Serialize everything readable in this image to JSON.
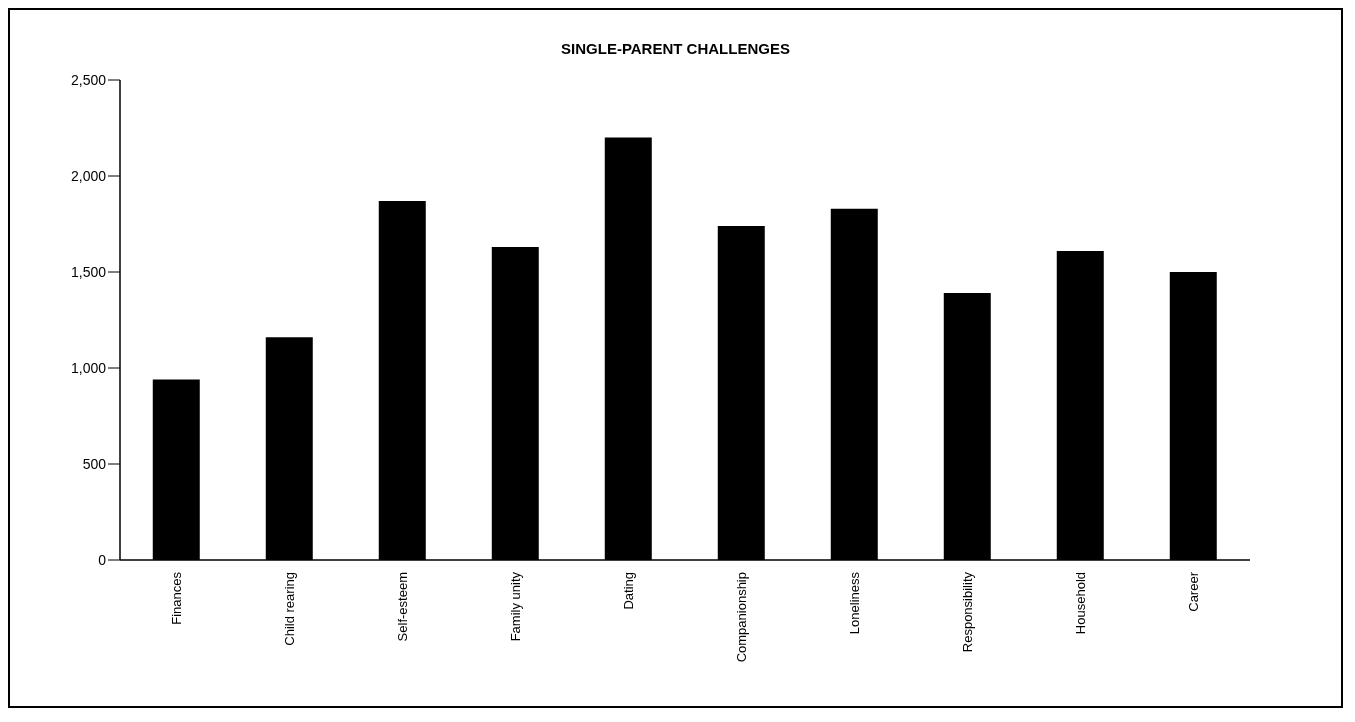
{
  "chart_data": {
    "type": "bar",
    "title": "SINGLE-PARENT CHALLENGES",
    "categories": [
      "Finances",
      "Child rearing",
      "Self-esteem",
      "Family unity",
      "Dating",
      "Companionship",
      "Loneliness",
      "Responsibility",
      "Household",
      "Career"
    ],
    "values": [
      940,
      1160,
      1870,
      1630,
      2200,
      1740,
      1830,
      1390,
      1610,
      1500
    ],
    "color": "#000000",
    "ylim": [
      0,
      2500
    ],
    "yticks": [
      {
        "value": 0,
        "label": "0"
      },
      {
        "value": 500,
        "label": "500"
      },
      {
        "value": 1000,
        "label": "1,000"
      },
      {
        "value": 1500,
        "label": "1,500"
      },
      {
        "value": 2000,
        "label": "2,000"
      },
      {
        "value": 2500,
        "label": "2,500"
      }
    ],
    "grid": false,
    "legend": false
  }
}
